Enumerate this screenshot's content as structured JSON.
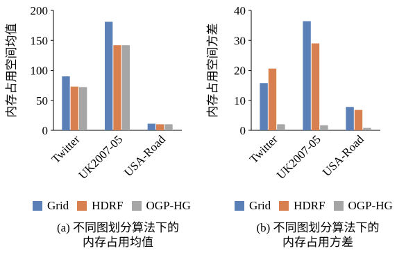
{
  "colors": {
    "Grid": "#5b80b7",
    "HDRF": "#d8804f",
    "OGP-HG": "#a6a6a6"
  },
  "legend": [
    {
      "name": "Grid",
      "color": "#5b80b7"
    },
    {
      "name": "HDRF",
      "color": "#d8804f"
    },
    {
      "name": "OGP-HG",
      "color": "#a6a6a6"
    }
  ],
  "captions": {
    "a_line1": "(a) 不同图划分算法下的",
    "a_line2": "内存占用均值",
    "b_line1": "(b) 不同图划分算法下的",
    "b_line2": "内存占用方差"
  },
  "chart_data": [
    {
      "type": "bar",
      "title": "",
      "xlabel": "",
      "ylabel": "内存占用空间均值",
      "categories": [
        "Twitter",
        "UK2007-05",
        "USA-Road"
      ],
      "ylim": [
        0,
        200
      ],
      "yticks": [
        0,
        50,
        100,
        150,
        200
      ],
      "series": [
        {
          "name": "Grid",
          "values": [
            90,
            181,
            11
          ]
        },
        {
          "name": "HDRF",
          "values": [
            73,
            142,
            10
          ]
        },
        {
          "name": "OGP-HG",
          "values": [
            72,
            142,
            10
          ]
        }
      ],
      "grid": false
    },
    {
      "type": "bar",
      "title": "",
      "xlabel": "",
      "ylabel": "内存占用空间方差",
      "categories": [
        "Twitter",
        "UK2007-05",
        "USA-Road"
      ],
      "ylim": [
        0,
        40
      ],
      "yticks": [
        0,
        10,
        20,
        30,
        40
      ],
      "series": [
        {
          "name": "Grid",
          "values": [
            15.7,
            36.4,
            7.8
          ]
        },
        {
          "name": "HDRF",
          "values": [
            20.6,
            29,
            6.8
          ]
        },
        {
          "name": "OGP-HG",
          "values": [
            2,
            1.7,
            0.8
          ]
        }
      ],
      "grid": false
    }
  ]
}
